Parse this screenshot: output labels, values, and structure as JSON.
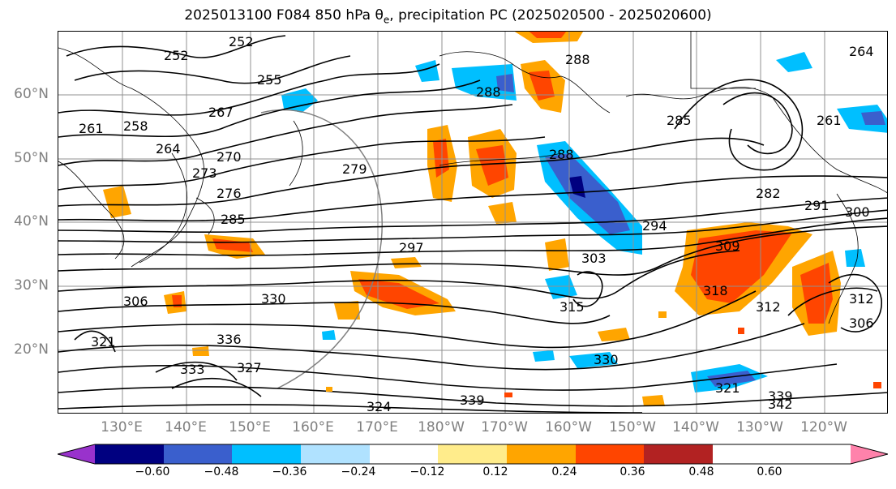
{
  "title_parts": {
    "prefix": "2025013100 F084 850 hPa ",
    "theta": "θ",
    "theta_sub": "e",
    "suffix": ", precipitation PC (2025020500 - 2025020600)"
  },
  "lat_labels": [
    "60°N",
    "50°N",
    "40°N",
    "30°N",
    "20°N"
  ],
  "lon_labels": [
    "130°E",
    "140°E",
    "150°E",
    "160°E",
    "170°E",
    "180°W",
    "170°W",
    "160°W",
    "150°W",
    "140°W",
    "130°W",
    "120°W"
  ],
  "colorbar": {
    "ticks": [
      "−0.60",
      "−0.48",
      "−0.36",
      "−0.24",
      "−0.12",
      "0.12",
      "0.24",
      "0.36",
      "0.48",
      "0.60"
    ],
    "colors": [
      "#9932cc",
      "#000080",
      "#3a5fcd",
      "#00bfff",
      "#b0e2ff",
      "#ffffff",
      "#ffec8b",
      "#ffa500",
      "#ff4500",
      "#b22222",
      "#ff82ab"
    ]
  },
  "contour_labels": [
    "252",
    "252",
    "255",
    "258",
    "261",
    "264",
    "267",
    "270",
    "273",
    "276",
    "279",
    "282",
    "285",
    "285",
    "288",
    "288",
    "288",
    "291",
    "294",
    "297",
    "300",
    "303",
    "306",
    "309",
    "312",
    "315",
    "318",
    "321",
    "324",
    "327",
    "330",
    "333",
    "336",
    "339",
    "339",
    "342",
    "264",
    "261",
    "306",
    "312",
    "321",
    "330"
  ]
}
